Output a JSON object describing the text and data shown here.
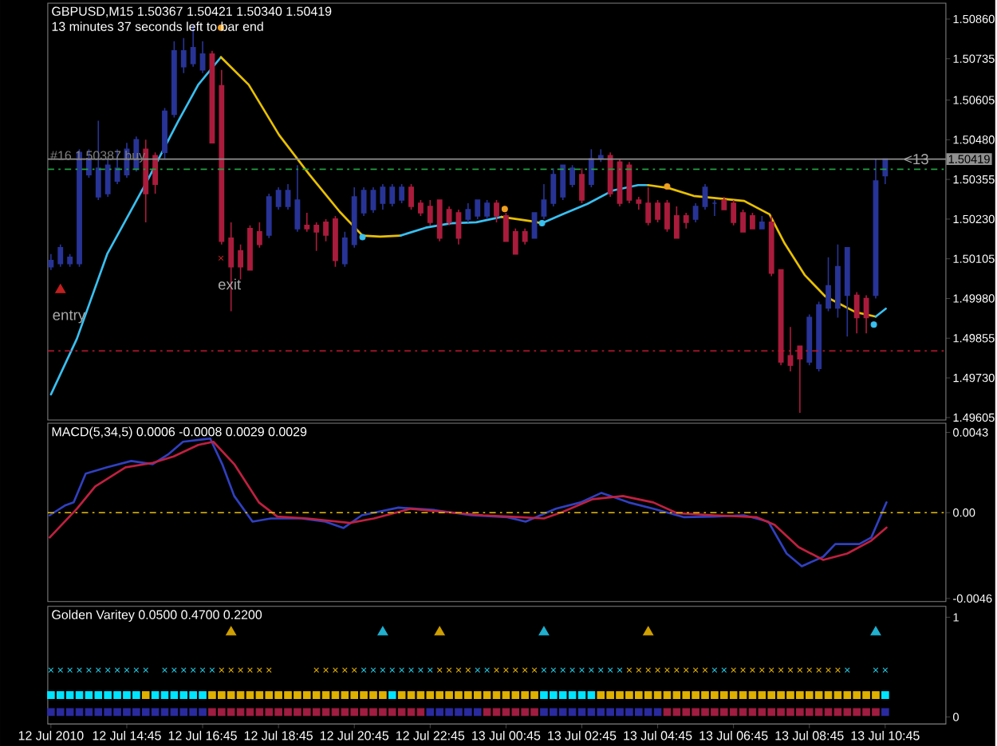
{
  "chart_data": [
    {
      "type": "candlestick",
      "title": "GBPUSD,M15  1.50367 1.50421 1.50340 1.50419",
      "subtitle": "13 minutes 37 seconds left to bar end",
      "x": [
        "2010-07-12T12:45",
        "2010-07-12T13:00",
        "2010-07-12T13:15",
        "2010-07-12T13:30",
        "2010-07-12T13:45",
        "2010-07-12T14:00",
        "2010-07-12T14:15",
        "2010-07-12T14:30",
        "2010-07-12T14:45",
        "2010-07-12T15:00",
        "2010-07-12T15:15",
        "2010-07-12T15:30",
        "2010-07-12T15:45",
        "2010-07-12T16:00",
        "2010-07-12T16:15",
        "2010-07-12T16:30",
        "2010-07-12T16:45",
        "2010-07-12T17:00",
        "2010-07-12T17:15",
        "2010-07-12T17:30",
        "2010-07-12T17:45",
        "2010-07-12T18:00",
        "2010-07-12T18:15",
        "2010-07-12T18:30",
        "2010-07-12T18:45",
        "2010-07-12T19:00",
        "2010-07-12T19:15",
        "2010-07-12T19:30",
        "2010-07-12T19:45",
        "2010-07-12T20:00",
        "2010-07-12T20:15",
        "2010-07-12T20:30",
        "2010-07-12T20:45",
        "2010-07-12T21:00",
        "2010-07-12T21:15",
        "2010-07-12T21:30",
        "2010-07-12T21:45",
        "2010-07-12T22:00",
        "2010-07-12T22:15",
        "2010-07-12T22:30",
        "2010-07-12T22:45",
        "2010-07-12T23:00",
        "2010-07-12T23:15",
        "2010-07-12T23:30",
        "2010-07-12T23:45",
        "2010-07-13T00:00",
        "2010-07-13T00:15",
        "2010-07-13T00:30",
        "2010-07-13T00:45",
        "2010-07-13T01:00",
        "2010-07-13T01:15",
        "2010-07-13T01:30",
        "2010-07-13T01:45",
        "2010-07-13T02:00",
        "2010-07-13T02:15",
        "2010-07-13T02:30",
        "2010-07-13T02:45",
        "2010-07-13T03:00",
        "2010-07-13T03:15",
        "2010-07-13T03:30",
        "2010-07-13T03:45",
        "2010-07-13T04:00",
        "2010-07-13T04:15",
        "2010-07-13T04:30",
        "2010-07-13T04:45",
        "2010-07-13T05:00",
        "2010-07-13T05:15",
        "2010-07-13T05:30",
        "2010-07-13T05:45",
        "2010-07-13T06:00",
        "2010-07-13T06:15",
        "2010-07-13T06:30",
        "2010-07-13T06:45",
        "2010-07-13T07:00",
        "2010-07-13T07:15",
        "2010-07-13T07:30",
        "2010-07-13T07:45",
        "2010-07-13T08:00",
        "2010-07-13T08:15",
        "2010-07-13T08:30",
        "2010-07-13T08:45",
        "2010-07-13T09:00",
        "2010-07-13T09:15",
        "2010-07-13T09:30",
        "2010-07-13T09:45",
        "2010-07-13T10:00",
        "2010-07-13T10:15",
        "2010-07-13T10:30",
        "2010-07-13T10:45"
      ],
      "ohlc": [
        [
          1.5008,
          1.5012,
          1.5007,
          1.501
        ],
        [
          1.5009,
          1.5015,
          1.5008,
          1.5014
        ],
        [
          1.5009,
          1.5012,
          1.5008,
          1.5011
        ],
        [
          1.5009,
          1.5045,
          1.5008,
          1.5044
        ],
        [
          1.5037,
          1.5045,
          1.5036,
          1.5042
        ],
        [
          1.503,
          1.5054,
          1.5029,
          1.5039
        ],
        [
          1.5031,
          1.5042,
          1.503,
          1.504
        ],
        [
          1.5035,
          1.5045,
          1.5034,
          1.5039
        ],
        [
          1.5037,
          1.5047,
          1.5036,
          1.5045
        ],
        [
          1.5039,
          1.5049,
          1.5038,
          1.5048
        ],
        [
          1.5045,
          1.5048,
          1.5022,
          1.5031
        ],
        [
          1.5043,
          1.5044,
          1.5031,
          1.5034
        ],
        [
          1.5044,
          1.5058,
          1.5042,
          1.5057
        ],
        [
          1.5056,
          1.5079,
          1.5055,
          1.5076
        ],
        [
          1.5071,
          1.508,
          1.5069,
          1.5076
        ],
        [
          1.5072,
          1.5084,
          1.5071,
          1.5077
        ],
        [
          1.507,
          1.5079,
          1.5069,
          1.5075
        ],
        [
          1.5075,
          1.5076,
          1.5047,
          1.5047
        ],
        [
          1.5065,
          1.507,
          1.5015,
          1.5016
        ],
        [
          1.5017,
          1.5022,
          1.4994,
          1.5008
        ],
        [
          1.5013,
          1.5015,
          1.5004,
          1.5008
        ],
        [
          1.502,
          1.5021,
          1.5007,
          1.5007
        ],
        [
          1.5019,
          1.5022,
          1.5014,
          1.5015
        ],
        [
          1.5018,
          1.5031,
          1.5017,
          1.503
        ],
        [
          1.5027,
          1.5033,
          1.5026,
          1.5032
        ],
        [
          1.5027,
          1.5034,
          1.5026,
          1.5032
        ],
        [
          1.502,
          1.504,
          1.5019,
          1.5029
        ],
        [
          1.5021,
          1.5025,
          1.5019,
          1.502
        ],
        [
          1.5021,
          1.5022,
          1.5013,
          1.5019
        ],
        [
          1.5022,
          1.5023,
          1.5016,
          1.5018
        ],
        [
          1.5023,
          1.5024,
          1.5008,
          1.501
        ],
        [
          1.5009,
          1.5019,
          1.5008,
          1.5017
        ],
        [
          1.5015,
          1.5033,
          1.5014,
          1.503
        ],
        [
          1.5025,
          1.5033,
          1.5024,
          1.5032
        ],
        [
          1.5026,
          1.5033,
          1.5025,
          1.5032
        ],
        [
          1.5028,
          1.5034,
          1.5026,
          1.5033
        ],
        [
          1.5028,
          1.5034,
          1.5027,
          1.5033
        ],
        [
          1.5029,
          1.5034,
          1.5028,
          1.5033
        ],
        [
          1.5033,
          1.5034,
          1.5026,
          1.5027
        ],
        [
          1.5028,
          1.5029,
          1.5024,
          1.5025
        ],
        [
          1.5027,
          1.5029,
          1.5021,
          1.5022
        ],
        [
          1.5029,
          1.5029,
          1.5016,
          1.5017
        ],
        [
          1.5026,
          1.5027,
          1.5021,
          1.5022
        ],
        [
          1.5025,
          1.5026,
          1.5015,
          1.5017
        ],
        [
          1.5023,
          1.5028,
          1.5022,
          1.5026
        ],
        [
          1.5024,
          1.5029,
          1.5023,
          1.5029
        ],
        [
          1.5024,
          1.5029,
          1.5023,
          1.5028
        ],
        [
          1.5028,
          1.5029,
          1.5022,
          1.5024
        ],
        [
          1.5024,
          1.5025,
          1.5016,
          1.5016
        ],
        [
          1.5019,
          1.502,
          1.5012,
          1.5012
        ],
        [
          1.5019,
          1.502,
          1.5015,
          1.5016
        ],
        [
          1.5017,
          1.5025,
          1.5017,
          1.5025
        ],
        [
          1.5024,
          1.5034,
          1.5023,
          1.5029
        ],
        [
          1.5028,
          1.5039,
          1.5027,
          1.5037
        ],
        [
          1.503,
          1.504,
          1.5029,
          1.504
        ],
        [
          1.5034,
          1.504,
          1.5033,
          1.5039
        ],
        [
          1.5037,
          1.5039,
          1.5028,
          1.5029
        ],
        [
          1.5034,
          1.5045,
          1.5033,
          1.5042
        ],
        [
          1.5042,
          1.5045,
          1.5041,
          1.5043
        ],
        [
          1.5043,
          1.5044,
          1.503,
          1.5031
        ],
        [
          1.5041,
          1.5042,
          1.5027,
          1.5028
        ],
        [
          1.504,
          1.5041,
          1.5028,
          1.5029
        ],
        [
          1.5029,
          1.503,
          1.5026,
          1.5028
        ],
        [
          1.5028,
          1.5033,
          1.5021,
          1.5022
        ],
        [
          1.5028,
          1.5029,
          1.5022,
          1.5023
        ],
        [
          1.5028,
          1.5029,
          1.5019,
          1.502
        ],
        [
          1.5024,
          1.5027,
          1.5017,
          1.5017
        ],
        [
          1.5024,
          1.5025,
          1.502,
          1.5022
        ],
        [
          1.5023,
          1.5028,
          1.5022,
          1.5027
        ],
        [
          1.5027,
          1.5034,
          1.5026,
          1.5033
        ],
        [
          1.5028,
          1.5029,
          1.5024,
          1.5028
        ],
        [
          1.5029,
          1.503,
          1.5026,
          1.5026
        ],
        [
          1.5028,
          1.5029,
          1.5021,
          1.5022
        ],
        [
          1.5025,
          1.5026,
          1.5019,
          1.5019
        ],
        [
          1.5024,
          1.5025,
          1.502,
          1.502
        ],
        [
          1.502,
          1.5024,
          1.502,
          1.5022
        ],
        [
          1.5022,
          1.5024,
          1.5005,
          1.5006
        ],
        [
          1.5007,
          1.5007,
          1.4977,
          1.4978
        ],
        [
          1.498,
          1.4989,
          1.4975,
          1.4977
        ],
        [
          1.4983,
          1.4983,
          1.4962,
          1.4979
        ],
        [
          1.4978,
          1.4993,
          1.4977,
          1.4992
        ],
        [
          1.4976,
          1.4997,
          1.4975,
          1.4996
        ],
        [
          1.4995,
          1.5011,
          1.4994,
          1.5002
        ],
        [
          1.4995,
          1.5015,
          1.4992,
          1.5008
        ],
        [
          1.4999,
          1.5014,
          1.4986,
          1.5014
        ],
        [
          1.4999,
          1.5,
          1.4987,
          1.4992
        ],
        [
          1.4998,
          1.4999,
          1.4987,
          1.4992
        ],
        [
          1.4999,
          1.5042,
          1.4998,
          1.5035
        ],
        [
          1.50367,
          1.50421,
          1.5034,
          1.50419
        ]
      ],
      "xlim": [
        "2010-07-12T12:40",
        "2010-07-13T12:21"
      ],
      "ylim": [
        1.49597,
        1.5091
      ],
      "yticks": [
        {
          "value": 1.4973,
          "label": "1.49730"
        },
        {
          "value": 1.49605,
          "label": "1.49605"
        },
        {
          "value": 1.49855,
          "label": "1.49855"
        },
        {
          "value": 1.4998,
          "label": "1.49980"
        },
        {
          "value": 1.50105,
          "label": "1.50105"
        },
        {
          "value": 1.5023,
          "label": "1.50230"
        },
        {
          "value": 1.50355,
          "label": "1.50355"
        },
        {
          "value": 1.5048,
          "label": "1.50480"
        },
        {
          "value": 1.50605,
          "label": "1.50605"
        },
        {
          "value": 1.50735,
          "label": "1.50735"
        },
        {
          "value": 1.5086,
          "label": "1.50860"
        }
      ],
      "tick_labels": "y",
      "series": [
        {
          "type": "line",
          "color": "#39c0f0",
          "marker": "none",
          "x": [
            "2010-07-12T12:45",
            "2010-07-12T13:26",
            "2010-07-12T14:14",
            "2010-07-12T15:18",
            "2010-07-12T16:06",
            "2010-07-12T16:38",
            "2010-07-12T17:14"
          ],
          "values": [
            1.49678,
            1.49853,
            1.5012,
            1.50353,
            1.50537,
            1.50653,
            1.5074
          ]
        },
        {
          "type": "line",
          "color": "#e8c000",
          "marker": "none",
          "x": [
            "2010-07-12T17:14",
            "2010-07-12T17:58",
            "2010-07-12T18:46",
            "2010-07-12T19:34",
            "2010-07-12T20:22",
            "2010-07-12T20:58",
            "2010-07-12T21:26",
            "2010-07-12T21:58"
          ],
          "values": [
            1.5074,
            1.50653,
            1.50495,
            1.5037,
            1.50253,
            1.50178,
            1.50175,
            1.50178
          ]
        },
        {
          "type": "line",
          "color": "#39c0f0",
          "marker": "none",
          "x": [
            "2010-07-12T21:58",
            "2010-07-12T22:38",
            "2010-07-12T23:18",
            "2010-07-12T23:58",
            "2010-07-13T00:38"
          ],
          "values": [
            1.50178,
            1.50203,
            1.50217,
            1.5022,
            1.50237
          ]
        },
        {
          "type": "line",
          "color": "#e8c000",
          "marker": "none",
          "x": [
            "2010-07-13T00:38",
            "2010-07-13T01:26",
            "2010-07-13T01:42"
          ],
          "values": [
            1.50237,
            1.50223,
            1.50217
          ]
        },
        {
          "type": "line",
          "color": "#39c0f0",
          "marker": "none",
          "x": [
            "2010-07-13T01:42",
            "2010-07-13T02:14",
            "2010-07-13T02:54",
            "2010-07-13T03:34",
            "2010-07-13T04:14",
            "2010-07-13T04:30"
          ],
          "values": [
            1.50217,
            1.50245,
            1.50278,
            1.5032,
            1.50337,
            1.50337
          ]
        },
        {
          "type": "line",
          "color": "#e8c000",
          "marker": "none",
          "x": [
            "2010-07-13T04:30",
            "2010-07-13T05:02",
            "2010-07-13T05:42",
            "2010-07-13T06:22",
            "2010-07-13T07:02",
            "2010-07-13T07:42",
            "2010-07-13T08:06",
            "2010-07-13T08:38",
            "2010-07-13T09:10",
            "2010-07-13T09:58",
            "2010-07-13T10:30"
          ],
          "values": [
            1.50337,
            1.50328,
            1.50303,
            1.50295,
            1.50287,
            1.50245,
            1.50153,
            1.50053,
            1.49987,
            1.49937,
            1.49923
          ]
        },
        {
          "type": "line",
          "color": "#39c0f0",
          "marker": "none",
          "x": [
            "2010-07-13T10:30",
            "2010-07-13T10:46"
          ],
          "values": [
            1.49923,
            1.49948
          ]
        },
        {
          "type": "scatter",
          "color": "#39c0f0",
          "marker": "circle",
          "x": [
            "2010-07-12T20:58",
            "2010-07-13T01:42",
            "2010-07-13T10:27"
          ],
          "values": [
            1.50173,
            1.50217,
            1.49898
          ]
        },
        {
          "type": "scatter",
          "color": "#f0a020",
          "marker": "circle",
          "x": [
            "2010-07-12T17:14",
            "2010-07-13T00:43",
            "2010-07-13T05:00"
          ],
          "values": [
            1.50833,
            1.50262,
            1.50333
          ]
        },
        {
          "type": "scatter",
          "color": "#c02020",
          "marker": "triangle",
          "x": [
            "2010-07-12T13:00"
          ],
          "values": [
            1.50007
          ]
        },
        {
          "type": "scatter",
          "color": "#c02020",
          "marker": "cross",
          "x": [
            "2010-07-12T17:14"
          ],
          "values": [
            1.50107
          ]
        }
      ],
      "ref_lines": [
        {
          "axis": "y",
          "value": 1.50419,
          "label": "1.50419",
          "color": "#909090",
          "line_style": "solid"
        },
        {
          "axis": "y",
          "value": 1.50387,
          "label": "#16 1.50387 buy",
          "color": "#20a040",
          "line_style": "dashed"
        },
        {
          "axis": "y",
          "value": 1.49815,
          "color": "#c01830",
          "line_style": "dashed"
        }
      ],
      "annotations": [
        {
          "text": "entry",
          "x": "2010-07-12T13:00",
          "y": 1.50007
        },
        {
          "text": "exit",
          "x": "2010-07-12T17:14",
          "y": 1.50107
        },
        {
          "text": "<13",
          "x": "2010-07-13T10:45",
          "y": 1.50419
        }
      ]
    },
    {
      "type": "line",
      "title": "MACD(5,34,5) 0.0006 -0.0008 0.0029 0.0029",
      "xlim": [
        "2010-07-12T12:40",
        "2010-07-13T12:21"
      ],
      "ylim": [
        -0.00476,
        0.00479
      ],
      "yticks": [
        {
          "value": -0.0046,
          "label": "-0.0046"
        },
        {
          "value": 0,
          "label": "0.00"
        },
        {
          "value": 0.0043,
          "label": "0.0043"
        }
      ],
      "tick_labels": "y",
      "series": [
        {
          "color": "#3040c0",
          "x": [
            "2010-07-12T12:43",
            "2010-07-12T13:07",
            "2010-07-12T13:21",
            "2010-07-12T13:40",
            "2010-07-12T14:14",
            "2010-07-12T14:52",
            "2010-07-12T15:26",
            "2010-07-12T15:50",
            "2010-07-12T16:14",
            "2010-07-12T16:57",
            "2010-07-12T17:16",
            "2010-07-12T17:35",
            "2010-07-12T18:04",
            "2010-07-12T18:33",
            "2010-07-12T19:21",
            "2010-07-12T19:59",
            "2010-07-12T20:28",
            "2010-07-12T20:57",
            "2010-07-12T21:55",
            "2010-07-12T22:52",
            "2010-07-12T23:50",
            "2010-07-13T00:47",
            "2010-07-13T01:16",
            "2010-07-13T02:04",
            "2010-07-13T02:43",
            "2010-07-13T03:16",
            "2010-07-13T03:59",
            "2010-07-13T04:38",
            "2010-07-13T05:26",
            "2010-07-13T06:14",
            "2010-07-13T07:02",
            "2010-07-13T07:40",
            "2010-07-13T08:09",
            "2010-07-13T08:33",
            "2010-07-13T09:07",
            "2010-07-13T09:26",
            "2010-07-13T10:04",
            "2010-07-13T10:23",
            "2010-07-13T10:47"
          ],
          "values": [
            -0.00014,
            0.00038,
            0.00055,
            0.00209,
            0.00243,
            0.00277,
            0.0026,
            0.00311,
            0.0038,
            0.00397,
            0.0026,
            0.00089,
            -0.00048,
            -0.00031,
            -0.00031,
            -0.00048,
            -0.00082,
            -0.00014,
            0.00027,
            0.00014,
            -0.00014,
            -0.00024,
            -0.00048,
            0.00021,
            0.00055,
            0.00106,
            0.00055,
            0.00021,
            -0.00024,
            -0.00021,
            -0.00014,
            -0.00048,
            -0.00219,
            -0.00287,
            -0.00236,
            -0.00168,
            -0.00168,
            -0.00133,
            0.00055
          ]
        },
        {
          "color": "#c02040",
          "x": [
            "2010-07-12T12:43",
            "2010-07-12T13:26",
            "2010-07-12T13:55",
            "2010-07-12T14:43",
            "2010-07-12T15:26",
            "2010-07-12T15:59",
            "2010-07-12T16:38",
            "2010-07-12T17:02",
            "2010-07-12T17:35",
            "2010-07-12T18:14",
            "2010-07-12T18:43",
            "2010-07-12T19:31",
            "2010-07-12T20:38",
            "2010-07-12T21:16",
            "2010-07-12T22:14",
            "2010-07-12T23:11",
            "2010-07-13T00:09",
            "2010-07-13T01:07",
            "2010-07-13T01:45",
            "2010-07-13T02:14",
            "2010-07-13T03:02",
            "2010-07-13T03:50",
            "2010-07-13T04:38",
            "2010-07-13T05:16",
            "2010-07-13T06:14",
            "2010-07-13T07:21",
            "2010-07-13T07:50",
            "2010-07-13T08:28",
            "2010-07-13T09:07",
            "2010-07-13T09:45",
            "2010-07-13T10:23",
            "2010-07-13T10:47"
          ],
          "values": [
            -0.00133,
            0.00021,
            0.0014,
            0.00243,
            0.00267,
            0.00301,
            0.00363,
            0.0038,
            0.0026,
            0.00055,
            -0.00021,
            -0.00031,
            -0.00055,
            -0.00031,
            0.00021,
            3e-05,
            -0.00014,
            -0.00024,
            -0.00031,
            3e-05,
            0.00072,
            0.00089,
            0.00055,
            -3e-05,
            -0.00014,
            -0.00024,
            -0.00065,
            -0.00185,
            -0.00253,
            -0.00219,
            -0.0015,
            -0.0008
          ]
        }
      ],
      "ref_lines": [
        {
          "axis": "y",
          "value": 0,
          "color": "#e8c000",
          "line_style": "dashed"
        }
      ]
    },
    {
      "type": "scatter",
      "title": "Golden Varitey 0.0500 0.4700 0.2200",
      "x": [
        "2010-07-12T12:45",
        "2010-07-12T13:00",
        "2010-07-12T13:15",
        "2010-07-12T13:30",
        "2010-07-12T13:45",
        "2010-07-12T14:00",
        "2010-07-12T14:15",
        "2010-07-12T14:30",
        "2010-07-12T14:45",
        "2010-07-12T15:00",
        "2010-07-12T15:15",
        "2010-07-12T15:30",
        "2010-07-12T15:45",
        "2010-07-12T16:00",
        "2010-07-12T16:15",
        "2010-07-12T16:30",
        "2010-07-12T16:45",
        "2010-07-12T17:00",
        "2010-07-12T17:15",
        "2010-07-12T17:30",
        "2010-07-12T17:45",
        "2010-07-12T18:00",
        "2010-07-12T18:15",
        "2010-07-12T18:30",
        "2010-07-12T18:45",
        "2010-07-12T19:00",
        "2010-07-12T19:15",
        "2010-07-12T19:30",
        "2010-07-12T19:45",
        "2010-07-12T20:00",
        "2010-07-12T20:15",
        "2010-07-12T20:30",
        "2010-07-12T20:45",
        "2010-07-12T21:00",
        "2010-07-12T21:15",
        "2010-07-12T21:30",
        "2010-07-12T21:45",
        "2010-07-12T22:00",
        "2010-07-12T22:15",
        "2010-07-12T22:30",
        "2010-07-12T22:45",
        "2010-07-12T23:00",
        "2010-07-12T23:15",
        "2010-07-12T23:30",
        "2010-07-12T23:45",
        "2010-07-13T00:00",
        "2010-07-13T00:15",
        "2010-07-13T00:30",
        "2010-07-13T00:45",
        "2010-07-13T01:00",
        "2010-07-13T01:15",
        "2010-07-13T01:30",
        "2010-07-13T01:45",
        "2010-07-13T02:00",
        "2010-07-13T02:15",
        "2010-07-13T02:30",
        "2010-07-13T02:45",
        "2010-07-13T03:00",
        "2010-07-13T03:15",
        "2010-07-13T03:30",
        "2010-07-13T03:45",
        "2010-07-13T04:00",
        "2010-07-13T04:15",
        "2010-07-13T04:30",
        "2010-07-13T04:45",
        "2010-07-13T05:00",
        "2010-07-13T05:15",
        "2010-07-13T05:30",
        "2010-07-13T05:45",
        "2010-07-13T06:00",
        "2010-07-13T06:15",
        "2010-07-13T06:30",
        "2010-07-13T06:45",
        "2010-07-13T07:00",
        "2010-07-13T07:15",
        "2010-07-13T07:30",
        "2010-07-13T07:45",
        "2010-07-13T08:00",
        "2010-07-13T08:15",
        "2010-07-13T08:30",
        "2010-07-13T08:45",
        "2010-07-13T09:00",
        "2010-07-13T09:15",
        "2010-07-13T09:30",
        "2010-07-13T09:45",
        "2010-07-13T10:00",
        "2010-07-13T10:15",
        "2010-07-13T10:30",
        "2010-07-13T10:45"
      ],
      "xlim": [
        "2010-07-12T12:40",
        "2010-07-13T12:21"
      ],
      "ylim": [
        -0.07,
        1.11
      ],
      "xticks": [
        {
          "value": "2010-07-12T12:45",
          "label": "12 Jul 2010"
        },
        {
          "value": "2010-07-12T14:45",
          "label": "12 Jul 14:45"
        },
        {
          "value": "2010-07-12T16:45",
          "label": "12 Jul 16:45"
        },
        {
          "value": "2010-07-12T18:45",
          "label": "12 Jul 18:45"
        },
        {
          "value": "2010-07-12T20:45",
          "label": "12 Jul 20:45"
        },
        {
          "value": "2010-07-12T22:45",
          "label": "12 Jul 22:45"
        },
        {
          "value": "2010-07-13T00:45",
          "label": "13 Jul 00:45"
        },
        {
          "value": "2010-07-13T02:45",
          "label": "13 Jul 02:45"
        },
        {
          "value": "2010-07-13T04:45",
          "label": "13 Jul 04:45"
        },
        {
          "value": "2010-07-13T06:45",
          "label": "13 Jul 06:45"
        },
        {
          "value": "2010-07-13T08:45",
          "label": "13 Jul 08:45"
        },
        {
          "value": "2010-07-13T10:45",
          "label": "13 Jul 10:45"
        }
      ],
      "yticks": [
        0,
        1
      ],
      "series": [
        {
          "color": "#20c8e0",
          "marker": "cross",
          "values": [
            0.47,
            0.47,
            0.47,
            0.47,
            0.47,
            0.47,
            0.47,
            0.47,
            0.47,
            0.47,
            0.47,
            null,
            0.47,
            0.47,
            0.47,
            0.47,
            0.47,
            0.47,
            null,
            null,
            null,
            null,
            null,
            null,
            null,
            null,
            null,
            null,
            null,
            null,
            null,
            null,
            null,
            0.47,
            0.47,
            0.47,
            0.47,
            0.47,
            0.47,
            0.47,
            0.47,
            null,
            null,
            null,
            null,
            0.47,
            0.47,
            null,
            null,
            null,
            null,
            null,
            0.47,
            0.47,
            0.47,
            0.47,
            0.47,
            0.47,
            0.47,
            0.47,
            0.47,
            null,
            null,
            null,
            null,
            null,
            null,
            null,
            null,
            null,
            0.47,
            0.47,
            null,
            null,
            null,
            null,
            null,
            null,
            null,
            null,
            null,
            null,
            null,
            null,
            0.47,
            null,
            null,
            0.47,
            0.47
          ]
        },
        {
          "color": "#e0b000",
          "marker": "cross",
          "values": [
            null,
            null,
            null,
            null,
            null,
            null,
            null,
            null,
            null,
            null,
            null,
            null,
            null,
            null,
            null,
            null,
            null,
            null,
            0.47,
            0.47,
            0.47,
            0.47,
            0.47,
            0.47,
            null,
            null,
            null,
            null,
            0.47,
            0.47,
            0.47,
            0.47,
            0.47,
            null,
            null,
            null,
            null,
            null,
            null,
            null,
            null,
            0.47,
            0.47,
            0.47,
            0.47,
            null,
            null,
            0.47,
            0.47,
            0.47,
            0.47,
            0.47,
            null,
            null,
            null,
            null,
            null,
            null,
            null,
            null,
            null,
            0.47,
            0.47,
            0.47,
            0.47,
            0.47,
            0.47,
            0.47,
            0.47,
            0.47,
            null,
            null,
            0.47,
            0.47,
            0.47,
            0.47,
            0.47,
            0.47,
            0.47,
            0.47,
            0.47,
            0.47,
            0.47,
            0.47,
            null,
            null,
            null,
            null,
            null
          ]
        },
        {
          "color": "#00e5ff",
          "marker": "square",
          "values": [
            0.22,
            0.22,
            0.22,
            0.22,
            0.22,
            0.22,
            0.22,
            0.22,
            0.22,
            0.22,
            null,
            0.22,
            0.22,
            0.22,
            0.22,
            0.22,
            0.22,
            null,
            null,
            null,
            null,
            null,
            null,
            null,
            null,
            null,
            null,
            null,
            null,
            null,
            null,
            null,
            null,
            null,
            null,
            null,
            0.22,
            null,
            null,
            null,
            null,
            null,
            null,
            null,
            null,
            null,
            null,
            null,
            null,
            null,
            null,
            null,
            0.22,
            0.22,
            0.22,
            0.22,
            0.22,
            0.22,
            null,
            null,
            null,
            null,
            null,
            null,
            null,
            null,
            null,
            null,
            null,
            null,
            null,
            null,
            null,
            null,
            null,
            null,
            null,
            null,
            null,
            null,
            null,
            null,
            null,
            null,
            null,
            null,
            null,
            null,
            0.22
          ]
        },
        {
          "color": "#e0b000",
          "marker": "square",
          "values": [
            null,
            null,
            null,
            null,
            null,
            null,
            null,
            null,
            null,
            null,
            0.22,
            null,
            null,
            null,
            null,
            null,
            null,
            0.22,
            0.22,
            0.22,
            0.22,
            0.22,
            0.22,
            0.22,
            0.22,
            0.22,
            0.22,
            0.22,
            0.22,
            0.22,
            0.22,
            0.22,
            0.22,
            0.22,
            0.22,
            0.22,
            null,
            0.22,
            0.22,
            0.22,
            0.22,
            0.22,
            0.22,
            0.22,
            0.22,
            0.22,
            0.22,
            0.22,
            0.22,
            0.22,
            0.22,
            0.22,
            null,
            null,
            null,
            null,
            null,
            null,
            0.22,
            0.22,
            0.22,
            0.22,
            0.22,
            0.22,
            0.22,
            0.22,
            0.22,
            0.22,
            0.22,
            0.22,
            0.22,
            0.22,
            0.22,
            0.22,
            0.22,
            0.22,
            0.22,
            0.22,
            0.22,
            0.22,
            0.22,
            0.22,
            0.22,
            0.22,
            0.22,
            0.22,
            0.22,
            0.22,
            null
          ]
        },
        {
          "color": "#2a2aa0",
          "marker": "square",
          "values": [
            0.05,
            0.05,
            0.05,
            0.05,
            0.05,
            0.05,
            0.05,
            0.05,
            0.05,
            0.05,
            0.05,
            0.05,
            0.05,
            0.05,
            0.05,
            0.05,
            0.05,
            null,
            null,
            null,
            null,
            null,
            null,
            null,
            null,
            null,
            null,
            null,
            null,
            null,
            null,
            null,
            null,
            null,
            null,
            null,
            null,
            null,
            null,
            null,
            0.05,
            0.05,
            0.05,
            0.05,
            0.05,
            0.05,
            null,
            null,
            null,
            null,
            null,
            null,
            0.05,
            0.05,
            0.05,
            0.05,
            0.05,
            0.05,
            0.05,
            0.05,
            0.05,
            0.05,
            0.05,
            0.05,
            0.05,
            null,
            null,
            null,
            null,
            null,
            null,
            null,
            null,
            null,
            null,
            null,
            null,
            null,
            null,
            null,
            null,
            null,
            null,
            null,
            null,
            null,
            null,
            null,
            0.05
          ]
        },
        {
          "color": "#a01c40",
          "marker": "square",
          "values": [
            null,
            null,
            null,
            null,
            null,
            null,
            null,
            null,
            null,
            null,
            null,
            null,
            null,
            null,
            null,
            null,
            null,
            0.05,
            0.05,
            0.05,
            0.05,
            0.05,
            0.05,
            0.05,
            0.05,
            0.05,
            0.05,
            0.05,
            0.05,
            0.05,
            0.05,
            0.05,
            0.05,
            0.05,
            0.05,
            0.05,
            0.05,
            0.05,
            0.05,
            0.05,
            null,
            null,
            null,
            null,
            null,
            null,
            0.05,
            0.05,
            0.05,
            0.05,
            0.05,
            0.05,
            null,
            null,
            null,
            null,
            null,
            null,
            null,
            null,
            null,
            null,
            null,
            null,
            null,
            0.05,
            0.05,
            0.05,
            0.05,
            0.05,
            0.05,
            0.05,
            0.05,
            0.05,
            0.05,
            0.05,
            0.05,
            0.05,
            0.05,
            0.05,
            0.05,
            0.05,
            0.05,
            0.05,
            0.05,
            0.05,
            0.05,
            0.05,
            null
          ]
        },
        {
          "color": "#20b0d0",
          "marker": "triangle",
          "x": [
            "2010-07-12T21:30",
            "2010-07-13T01:45",
            "2010-07-13T10:30"
          ],
          "values": [
            0.85,
            0.85,
            0.85
          ]
        },
        {
          "color": "#d0a000",
          "marker": "triangle-down",
          "x": [
            "2010-07-12T17:30",
            "2010-07-12T23:00",
            "2010-07-13T04:30"
          ],
          "values": [
            0.85,
            0.85,
            0.85
          ]
        }
      ]
    }
  ]
}
